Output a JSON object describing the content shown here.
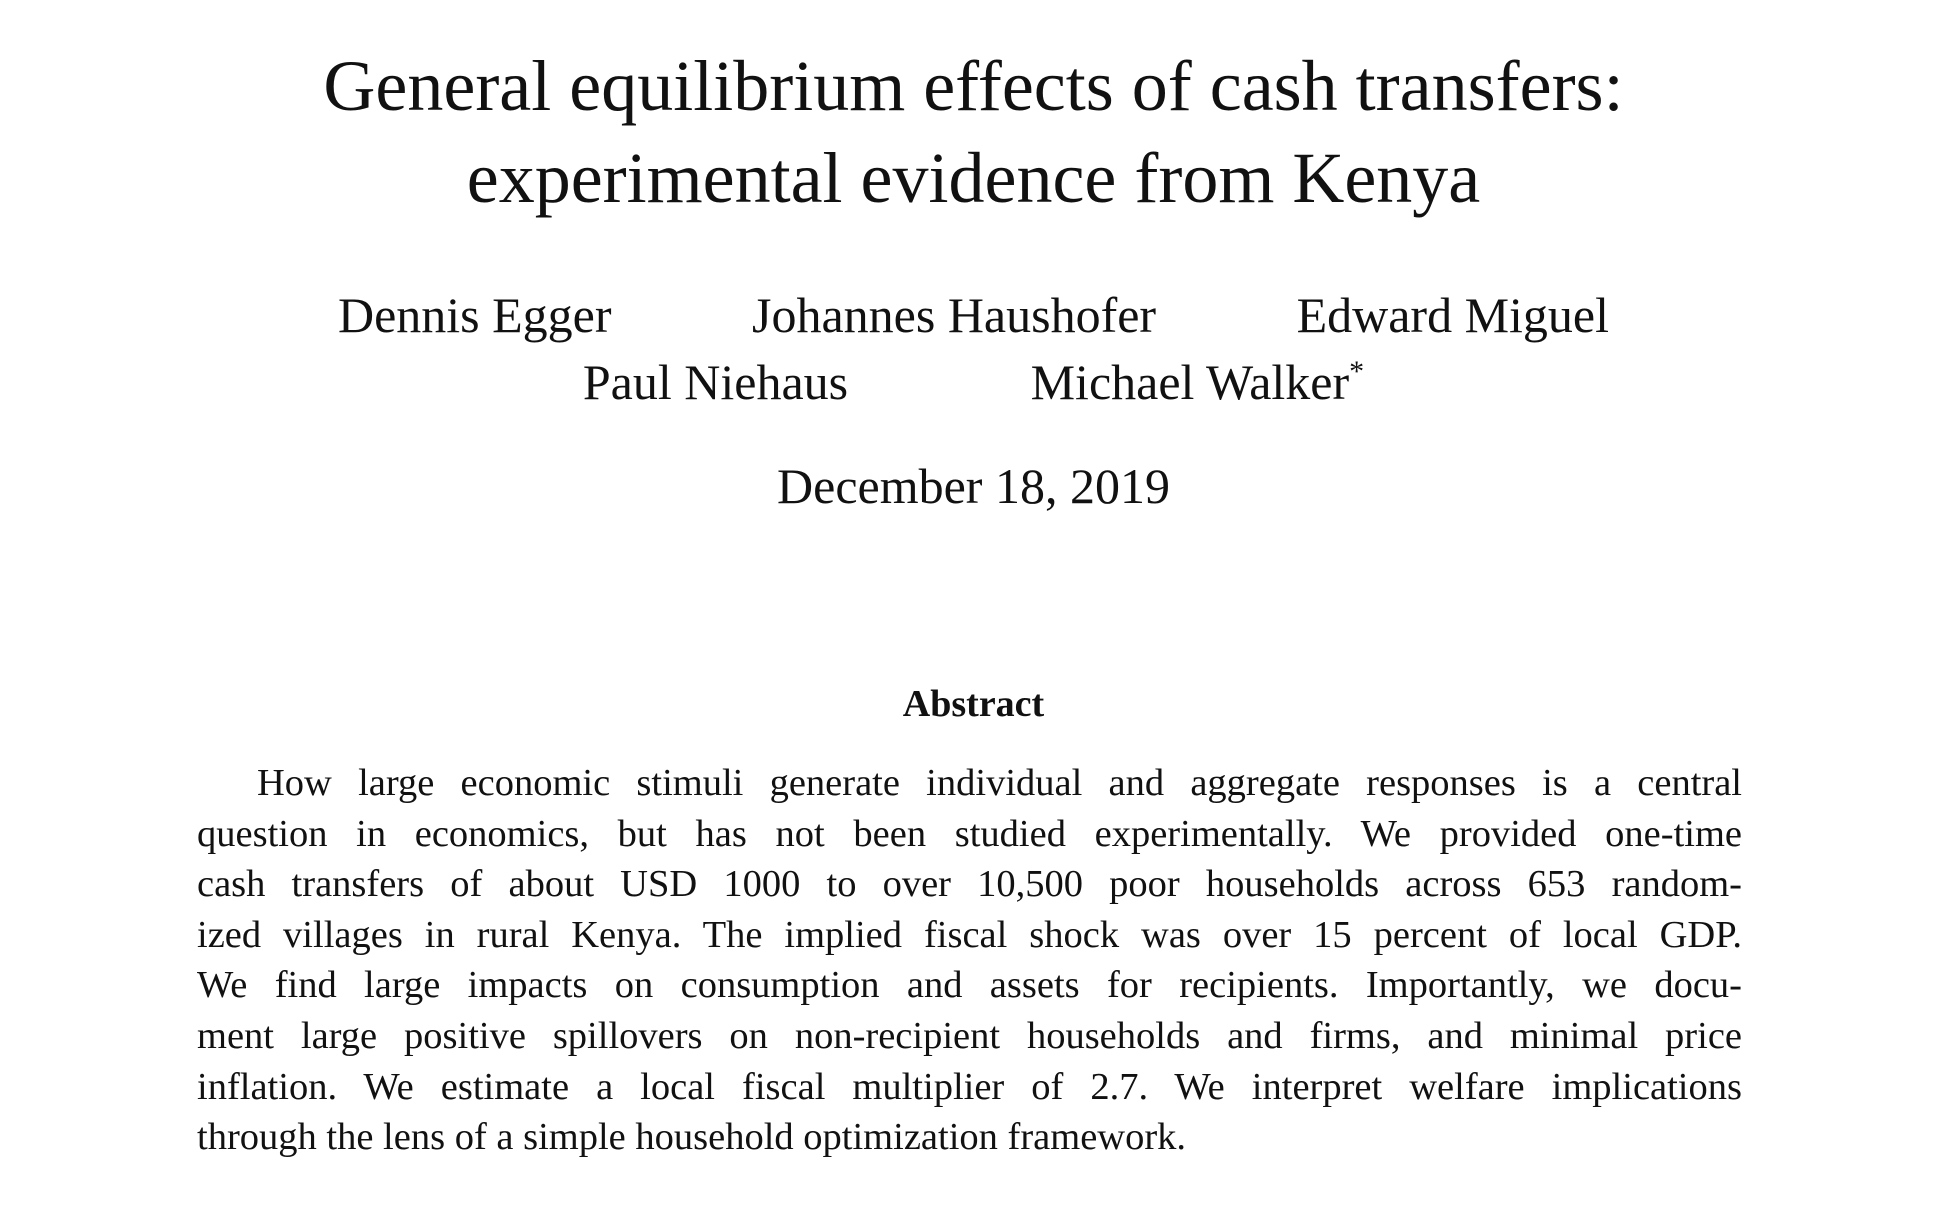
{
  "paper": {
    "title_lines": [
      "General equilibrium effects of cash transfers:",
      "experimental evidence from Kenya"
    ],
    "authors_row1": [
      "Dennis Egger",
      "Johannes Haushofer",
      "Edward Miguel"
    ],
    "authors_row2": [
      "Paul Niehaus",
      "Michael Walker"
    ],
    "footnote_mark": "*",
    "date": "December 18, 2019",
    "abstract_heading": "Abstract",
    "abstract_lines": [
      "How large economic stimuli generate individual and aggregate responses is a central",
      "question in economics, but has not been studied experimentally. We provided one-time",
      "cash transfers of about USD 1000 to over 10,500 poor households across 653 random-",
      "ized villages in rural Kenya. The implied fiscal shock was over 15 percent of local GDP.",
      "We find large impacts on consumption and assets for recipients. Importantly, we docu-",
      "ment large positive spillovers on non-recipient households and firms, and minimal price",
      "inflation. We estimate a local fiscal multiplier of 2.7. We interpret welfare implications",
      "through the lens of a simple household optimization framework."
    ]
  }
}
